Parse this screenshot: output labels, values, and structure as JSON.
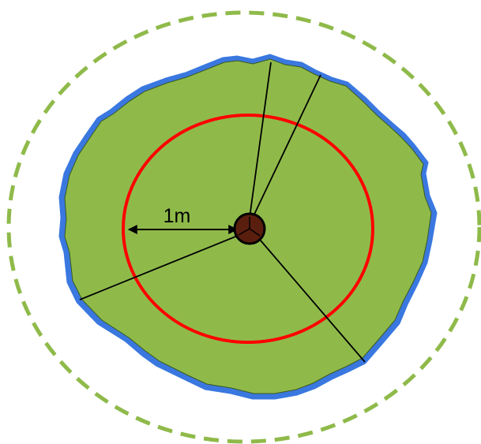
{
  "diagram": {
    "radius_label": "1m",
    "colors": {
      "canopy_fill": "#8fba4a",
      "canopy_outline": "#3a78e0",
      "dashed_boundary": "#8fba4a",
      "radius_ring": "#ff0000",
      "trunk_fill": "#5a1e0e",
      "lines": "#000000"
    }
  }
}
